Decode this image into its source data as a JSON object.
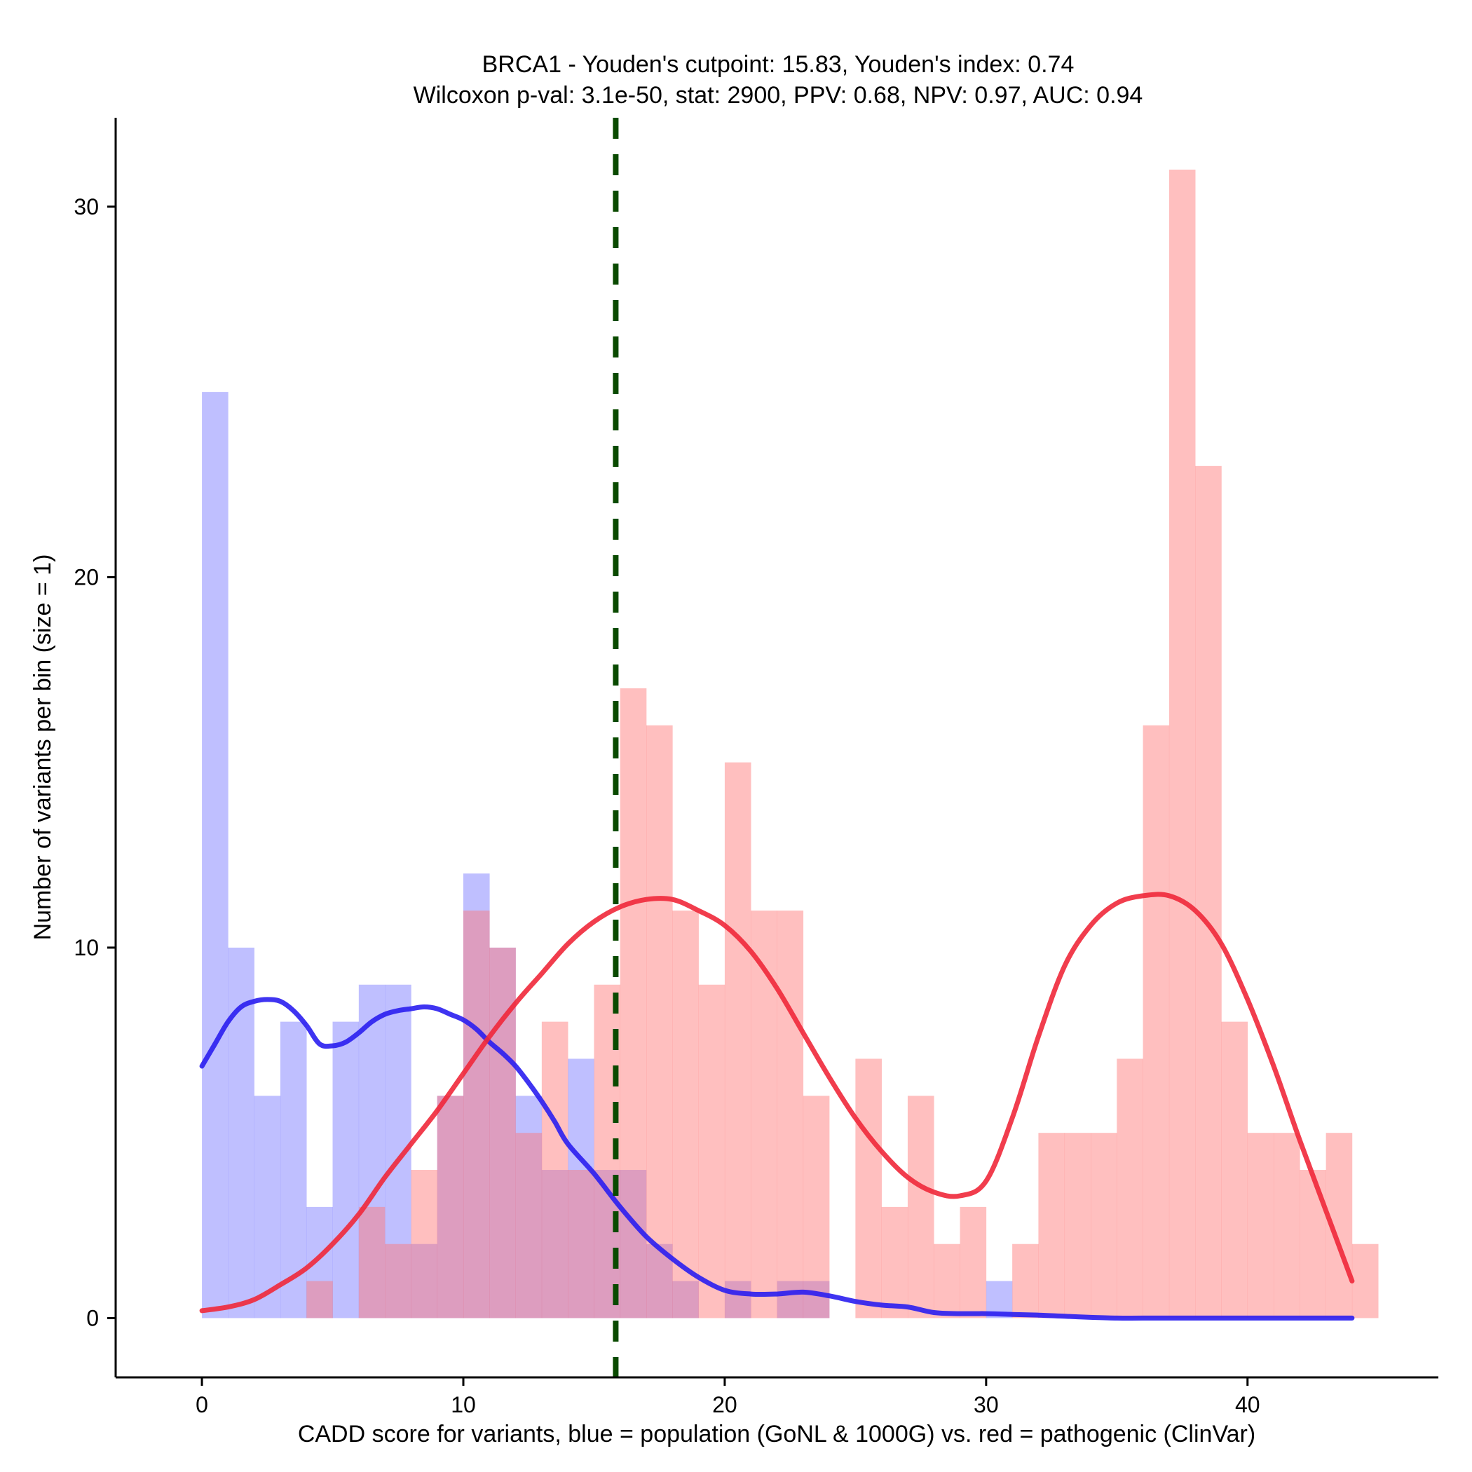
{
  "chart_data": {
    "type": "bar",
    "title": [
      "BRCA1 - Youden's cutpoint: 15.83, Youden's index: 0.74",
      "Wilcoxon p-val: 3.1e-50, stat: 2900, PPV: 0.68, NPV: 0.97, AUC: 0.94"
    ],
    "xlabel": "CADD score for variants, blue = population (GoNL & 1000G) vs. red = pathogenic (ClinVar)",
    "ylabel": "Number of variants per bin (size = 1)",
    "xlim": [
      -3.3,
      47.3
    ],
    "ylim": [
      -1.6,
      32.4
    ],
    "xticks": [
      0,
      10,
      20,
      30,
      40
    ],
    "yticks": [
      0,
      10,
      20,
      30
    ],
    "bin_width": 1,
    "grid": false,
    "legend": "none",
    "colors": {
      "population_fill": "#7777ff",
      "pathogenic_fill": "#ff7777",
      "population_line": "#2a1ef0",
      "pathogenic_line": "#f0283a",
      "cutpoint": "#0a4a00",
      "axis": "#000000"
    },
    "cutpoint": 15.83,
    "series": [
      {
        "name": "population (GoNL & 1000G)",
        "bin_starts": [
          0,
          1,
          2,
          3,
          4,
          5,
          6,
          7,
          8,
          9,
          10,
          11,
          12,
          13,
          14,
          15,
          16,
          17,
          18,
          19,
          20,
          21,
          22,
          23,
          24,
          25,
          26,
          27,
          28,
          29,
          30,
          31,
          32,
          33,
          34,
          35,
          36,
          37,
          38,
          39,
          40,
          41,
          42,
          43,
          44
        ],
        "values": [
          25,
          10,
          6,
          8,
          3,
          8,
          9,
          9,
          2,
          6,
          12,
          10,
          6,
          4,
          7,
          4,
          4,
          2,
          1,
          0,
          1,
          0,
          1,
          1,
          0,
          0,
          0,
          0,
          0,
          0,
          1,
          0,
          0,
          0,
          0,
          0,
          0,
          0,
          0,
          0,
          0,
          0,
          0,
          0,
          0
        ]
      },
      {
        "name": "pathogenic (ClinVar)",
        "bin_starts": [
          0,
          1,
          2,
          3,
          4,
          5,
          6,
          7,
          8,
          9,
          10,
          11,
          12,
          13,
          14,
          15,
          16,
          17,
          18,
          19,
          20,
          21,
          22,
          23,
          24,
          25,
          26,
          27,
          28,
          29,
          30,
          31,
          32,
          33,
          34,
          35,
          36,
          37,
          38,
          39,
          40,
          41,
          42,
          43,
          44
        ],
        "values": [
          0,
          0,
          0,
          0,
          1,
          0,
          3,
          2,
          4,
          6,
          11,
          10,
          5,
          8,
          4,
          9,
          17,
          16,
          11,
          9,
          15,
          11,
          11,
          6,
          0,
          7,
          3,
          6,
          2,
          3,
          0,
          2,
          5,
          5,
          5,
          7,
          16,
          31,
          23,
          8,
          5,
          5,
          4,
          5,
          2
        ]
      }
    ],
    "density_curves": [
      {
        "name": "population density",
        "x": [
          0,
          0.5,
          1,
          1.5,
          2,
          2.5,
          3,
          3.5,
          4,
          4.5,
          5,
          5.5,
          6,
          6.5,
          7,
          7.5,
          8,
          8.5,
          9,
          9.5,
          10,
          10.5,
          11,
          11.5,
          12,
          12.5,
          13,
          13.5,
          14,
          15,
          16,
          17,
          18,
          19,
          20,
          21,
          22,
          23,
          24,
          25,
          26,
          27,
          28,
          29,
          30,
          31,
          32,
          33,
          34,
          35,
          36,
          38,
          40,
          42,
          43,
          44
        ],
        "y": [
          6.8,
          7.4,
          8.0,
          8.4,
          8.55,
          8.6,
          8.55,
          8.3,
          7.9,
          7.4,
          7.35,
          7.45,
          7.7,
          8.0,
          8.2,
          8.3,
          8.35,
          8.4,
          8.35,
          8.2,
          8.05,
          7.8,
          7.45,
          7.15,
          6.8,
          6.35,
          5.85,
          5.3,
          4.7,
          3.9,
          3.0,
          2.2,
          1.6,
          1.1,
          0.75,
          0.65,
          0.65,
          0.7,
          0.6,
          0.45,
          0.35,
          0.3,
          0.15,
          0.12,
          0.12,
          0.1,
          0.08,
          0.05,
          0.02,
          0,
          0,
          0,
          0,
          0,
          0,
          0
        ]
      },
      {
        "name": "pathogenic density",
        "x": [
          0,
          1,
          2,
          3,
          4,
          5,
          6,
          7,
          8,
          9,
          10,
          11,
          12,
          13,
          14,
          15,
          16,
          17,
          18,
          19,
          20,
          21,
          22,
          23,
          24,
          25,
          26,
          27,
          28,
          29,
          30,
          31,
          32,
          33,
          34,
          35,
          36,
          37,
          38,
          39,
          40,
          41,
          42,
          43,
          44
        ],
        "y": [
          0.2,
          0.3,
          0.5,
          0.9,
          1.35,
          2.0,
          2.8,
          3.8,
          4.7,
          5.6,
          6.6,
          7.6,
          8.5,
          9.3,
          10.1,
          10.7,
          11.1,
          11.3,
          11.3,
          11.0,
          10.6,
          9.9,
          8.9,
          7.7,
          6.5,
          5.4,
          4.5,
          3.8,
          3.4,
          3.3,
          3.7,
          5.4,
          7.6,
          9.5,
          10.6,
          11.2,
          11.4,
          11.4,
          11.0,
          10.1,
          8.6,
          6.8,
          4.8,
          2.9,
          1.0
        ]
      }
    ]
  }
}
